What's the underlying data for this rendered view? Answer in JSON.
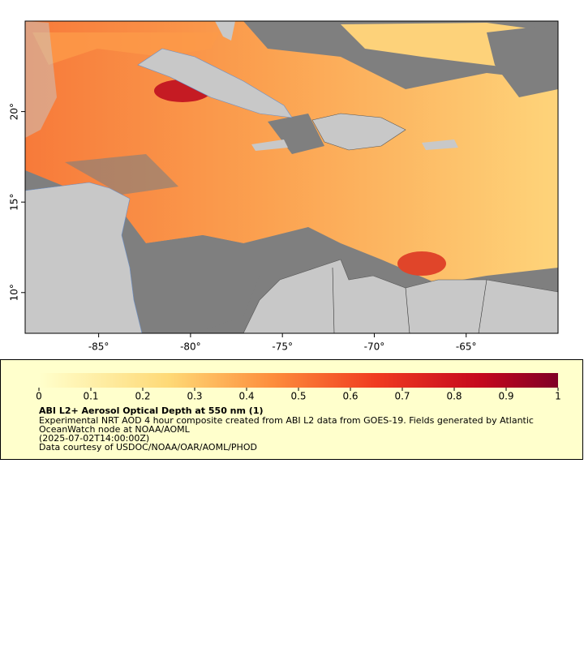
{
  "chart_data": {
    "type": "map",
    "xlim": [
      -89,
      -60
    ],
    "ylim": [
      7.75,
      25
    ],
    "xticks": [
      {
        "value": -85,
        "label": "-85°"
      },
      {
        "value": -80,
        "label": "-80°"
      },
      {
        "value": -75,
        "label": "-75°"
      },
      {
        "value": -70,
        "label": "-70°"
      },
      {
        "value": -65,
        "label": "-65°"
      }
    ],
    "yticks": [
      {
        "value": 10,
        "label": "10°"
      },
      {
        "value": 15,
        "label": "15°"
      },
      {
        "value": 20,
        "label": "20°"
      }
    ],
    "colorbar": {
      "lim": [
        0,
        1
      ],
      "ticks": [
        0,
        0.1,
        0.2,
        0.3,
        0.4,
        0.5,
        0.6,
        0.7,
        0.8,
        0.9,
        1
      ]
    },
    "legend": {
      "title": "ABI L2+ Aerosol Optical Depth at 550 nm (1)",
      "lines": [
        "Experimental NRT AOD 4 hour composite created from ABI L2 data from GOES-19. Fields generated by Atlantic",
        "OceanWatch node at NOAA/AOML",
        "(2025-07-02T14:00:00Z)",
        "Data courtesy of USDOC/NOAA/OAR/AOML/PHOD"
      ]
    }
  }
}
